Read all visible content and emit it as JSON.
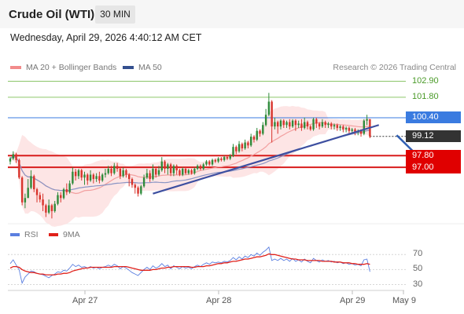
{
  "header": {
    "title": "Crude Oil (WTI)",
    "timeframe": "30 MIN"
  },
  "timestamp": "Wednesday, April 29, 2026 4:40:12 AM CET",
  "legend": {
    "main": [
      {
        "label": "MA 20 + Bollinger Bands",
        "color": "#f28b8b"
      },
      {
        "label": "MA 50",
        "color": "#34508f"
      }
    ],
    "rsi": [
      {
        "label": "RSI",
        "color": "#5b7fe0"
      },
      {
        "label": "9MA",
        "color": "#e0201a"
      }
    ]
  },
  "source": "Research © 2026 Trading Central",
  "chart_data": [
    {
      "type": "candlestick",
      "x_labels": [
        "Apr 27",
        "Apr 28",
        "Apr 29",
        "May 9"
      ],
      "ylim": [
        93.3,
        103.3
      ],
      "price_levels": [
        {
          "label": "102.90",
          "value": 102.9,
          "kind": "resistance"
        },
        {
          "label": "101.80",
          "value": 101.8,
          "kind": "resistance"
        },
        {
          "label": "100.40",
          "value": 100.4,
          "kind": "pivot"
        },
        {
          "label": "99.12",
          "value": 99.12,
          "kind": "last"
        },
        {
          "label": "97.80",
          "value": 97.8,
          "kind": "support"
        },
        {
          "label": "97.00",
          "value": 97.0,
          "kind": "support"
        }
      ],
      "colors": {
        "up": "#2f8a3a",
        "down": "#d8342c",
        "resistance": "#8cc66a",
        "pivot": "#3a7be0",
        "support": "#d81c1c",
        "last": "#333333",
        "trend": "#3d4fa0",
        "bands": "#fde0e0"
      },
      "trendline": [
        [
          48,
          95.2
        ],
        [
          124,
          99.9
        ]
      ],
      "forecast_arrow": [
        [
          130,
          99.2
        ],
        [
          139,
          97.4
        ]
      ],
      "candles": [
        [
          97.4,
          97.6,
          97.7,
          97.2
        ],
        [
          97.6,
          97.9,
          98.1,
          97.5
        ],
        [
          97.9,
          97.5,
          98.0,
          97.3
        ],
        [
          97.5,
          96.3,
          97.6,
          96.2
        ],
        [
          96.3,
          94.6,
          96.4,
          94.4
        ],
        [
          94.6,
          94.9,
          95.2,
          94.2
        ],
        [
          94.9,
          95.6,
          96.2,
          94.9
        ],
        [
          95.6,
          96.4,
          96.8,
          95.5
        ],
        [
          96.4,
          95.5,
          96.5,
          95.3
        ],
        [
          95.5,
          95.1,
          95.6,
          94.6
        ],
        [
          95.1,
          94.8,
          95.3,
          94.6
        ],
        [
          94.8,
          94.4,
          95.2,
          94.0
        ],
        [
          94.4,
          93.9,
          94.5,
          93.6
        ],
        [
          93.9,
          94.4,
          94.8,
          93.8
        ],
        [
          94.4,
          94.0,
          94.5,
          93.5
        ],
        [
          94.0,
          94.5,
          94.7,
          93.9
        ],
        [
          94.5,
          95.1,
          95.3,
          94.4
        ],
        [
          95.1,
          94.9,
          95.3,
          94.6
        ],
        [
          94.9,
          95.5,
          95.6,
          94.8
        ],
        [
          95.5,
          95.3,
          95.9,
          95.1
        ],
        [
          95.3,
          95.9,
          96.1,
          95.2
        ],
        [
          95.9,
          96.7,
          97.0,
          95.8
        ],
        [
          96.7,
          96.4,
          96.9,
          96.1
        ],
        [
          96.4,
          96.8,
          96.9,
          96.2
        ],
        [
          96.8,
          96.3,
          96.9,
          96.1
        ],
        [
          96.3,
          96.5,
          96.7,
          95.8
        ],
        [
          96.5,
          96.1,
          96.6,
          95.8
        ],
        [
          96.1,
          96.5,
          96.8,
          96.0
        ],
        [
          96.5,
          96.2,
          96.6,
          95.9
        ],
        [
          96.2,
          96.4,
          96.6,
          96.0
        ],
        [
          96.4,
          96.1,
          96.7,
          95.9
        ],
        [
          96.1,
          96.5,
          96.6,
          96.0
        ],
        [
          96.5,
          96.6,
          96.9,
          96.3
        ],
        [
          96.6,
          96.9,
          97.1,
          96.5
        ],
        [
          96.9,
          96.6,
          97.1,
          96.4
        ],
        [
          96.6,
          97.1,
          97.3,
          96.5
        ],
        [
          97.1,
          96.9,
          97.3,
          96.7
        ],
        [
          96.9,
          96.4,
          97.0,
          96.2
        ],
        [
          96.4,
          96.8,
          97.0,
          96.3
        ],
        [
          96.8,
          96.5,
          96.9,
          96.3
        ],
        [
          96.5,
          96.2,
          96.6,
          95.7
        ],
        [
          96.2,
          95.8,
          96.3,
          95.6
        ],
        [
          95.8,
          95.6,
          95.9,
          95.2
        ],
        [
          95.6,
          95.2,
          95.7,
          95.0
        ],
        [
          95.2,
          95.7,
          95.8,
          95.1
        ],
        [
          95.7,
          96.3,
          96.5,
          95.6
        ],
        [
          96.3,
          96.6,
          96.9,
          96.2
        ],
        [
          96.6,
          96.2,
          96.8,
          96.0
        ],
        [
          96.2,
          96.9,
          97.2,
          96.1
        ],
        [
          96.9,
          96.5,
          97.0,
          96.3
        ],
        [
          96.5,
          96.8,
          97.1,
          96.4
        ],
        [
          96.8,
          97.4,
          97.7,
          96.7
        ],
        [
          97.4,
          96.9,
          97.5,
          96.6
        ],
        [
          96.9,
          97.2,
          97.3,
          96.5
        ],
        [
          97.2,
          96.6,
          97.3,
          96.4
        ],
        [
          96.6,
          97.1,
          97.2,
          96.4
        ],
        [
          97.1,
          96.8,
          97.2,
          96.5
        ],
        [
          96.8,
          96.5,
          96.9,
          96.4
        ],
        [
          96.5,
          96.9,
          97.0,
          96.4
        ],
        [
          96.9,
          96.6,
          97.0,
          96.5
        ],
        [
          96.6,
          96.8,
          96.9,
          96.5
        ],
        [
          96.8,
          96.6,
          96.9,
          96.5
        ],
        [
          96.6,
          96.9,
          97.0,
          96.5
        ],
        [
          96.9,
          97.1,
          97.2,
          96.8
        ],
        [
          97.1,
          96.9,
          97.2,
          96.8
        ],
        [
          96.9,
          97.2,
          97.3,
          96.8
        ],
        [
          97.2,
          97.4,
          97.5,
          97.1
        ],
        [
          97.4,
          97.2,
          97.5,
          97.1
        ],
        [
          97.2,
          97.5,
          97.6,
          97.1
        ],
        [
          97.5,
          97.4,
          97.6,
          97.3
        ],
        [
          97.4,
          97.6,
          97.7,
          97.3
        ],
        [
          97.6,
          97.5,
          97.7,
          97.4
        ],
        [
          97.5,
          97.7,
          97.8,
          97.4
        ],
        [
          97.7,
          97.6,
          97.8,
          97.5
        ],
        [
          97.6,
          97.8,
          97.9,
          97.5
        ],
        [
          97.8,
          98.4,
          98.6,
          97.7
        ],
        [
          98.4,
          98.1,
          98.5,
          97.9
        ],
        [
          98.1,
          98.6,
          98.8,
          98.0
        ],
        [
          98.6,
          98.3,
          98.7,
          98.1
        ],
        [
          98.3,
          98.7,
          98.9,
          98.2
        ],
        [
          98.7,
          98.5,
          98.8,
          98.3
        ],
        [
          98.5,
          99.1,
          99.3,
          98.4
        ],
        [
          99.1,
          98.9,
          99.2,
          98.7
        ],
        [
          98.9,
          99.5,
          99.7,
          98.8
        ],
        [
          99.5,
          99.3,
          99.6,
          99.1
        ],
        [
          99.3,
          99.9,
          100.1,
          99.2
        ],
        [
          99.9,
          100.6,
          101.0,
          99.8
        ],
        [
          100.6,
          101.5,
          102.1,
          100.5
        ],
        [
          101.5,
          99.8,
          101.6,
          98.7
        ],
        [
          99.8,
          100.1,
          100.4,
          99.6
        ],
        [
          100.1,
          99.8,
          100.2,
          99.3
        ],
        [
          99.8,
          100.2,
          100.3,
          99.6
        ],
        [
          100.2,
          99.9,
          100.3,
          99.7
        ],
        [
          99.9,
          100.1,
          100.2,
          99.7
        ],
        [
          100.1,
          99.8,
          100.3,
          99.6
        ],
        [
          99.8,
          100.2,
          100.3,
          99.7
        ],
        [
          100.2,
          99.9,
          100.3,
          99.5
        ],
        [
          99.9,
          100.0,
          100.2,
          99.7
        ],
        [
          100.0,
          99.7,
          100.3,
          99.5
        ],
        [
          99.7,
          100.1,
          100.4,
          99.6
        ],
        [
          100.1,
          99.8,
          100.2,
          99.6
        ],
        [
          99.8,
          99.6,
          99.9,
          99.5
        ],
        [
          99.6,
          100.3,
          100.4,
          99.5
        ],
        [
          100.3,
          100.0,
          100.4,
          99.7
        ],
        [
          100.0,
          99.8,
          100.1,
          99.6
        ],
        [
          99.8,
          100.1,
          100.3,
          99.7
        ],
        [
          100.1,
          99.9,
          100.2,
          99.7
        ],
        [
          99.9,
          100.0,
          100.1,
          99.7
        ],
        [
          100.0,
          99.8,
          100.1,
          99.6
        ],
        [
          99.8,
          99.9,
          100.0,
          99.6
        ],
        [
          99.9,
          99.7,
          100.0,
          99.5
        ],
        [
          99.7,
          99.8,
          99.9,
          99.5
        ],
        [
          99.8,
          99.6,
          99.9,
          99.4
        ],
        [
          99.6,
          99.7,
          99.8,
          99.4
        ],
        [
          99.7,
          99.5,
          99.8,
          99.3
        ],
        [
          99.5,
          99.6,
          99.7,
          99.3
        ],
        [
          99.6,
          99.4,
          99.7,
          99.2
        ],
        [
          99.4,
          99.5,
          99.6,
          99.2
        ],
        [
          99.5,
          99.3,
          99.6,
          99.1
        ],
        [
          99.3,
          100.2,
          100.3,
          99.2
        ],
        [
          100.2,
          100.3,
          100.6,
          99.9
        ],
        [
          100.3,
          99.1,
          100.3,
          99.0
        ]
      ]
    },
    {
      "type": "line",
      "title": "RSI",
      "levels": [
        70,
        50,
        30
      ],
      "ylim": [
        20,
        85
      ],
      "series": [
        {
          "name": "RSI",
          "color": "#5b7fe0",
          "values": [
            58,
            63,
            56,
            50,
            32,
            40,
            44,
            48,
            47,
            45,
            44,
            43,
            41,
            39,
            42,
            44,
            47,
            46,
            49,
            48,
            52,
            57,
            54,
            56,
            53,
            54,
            52,
            54,
            52,
            53,
            51,
            53,
            54,
            56,
            54,
            57,
            55,
            51,
            54,
            52,
            49,
            46,
            44,
            42,
            46,
            50,
            53,
            50,
            55,
            52,
            54,
            58,
            54,
            56,
            51,
            55,
            53,
            51,
            54,
            52,
            53,
            51,
            54,
            56,
            54,
            57,
            59,
            57,
            60,
            59,
            60,
            59,
            61,
            60,
            62,
            66,
            63,
            67,
            64,
            68,
            66,
            70,
            68,
            72,
            69,
            73,
            76,
            80,
            62,
            64,
            62,
            65,
            62,
            64,
            61,
            65,
            61,
            63,
            60,
            64,
            61,
            59,
            65,
            62,
            60,
            63,
            61,
            62,
            60,
            61,
            59,
            60,
            58,
            59,
            57,
            58,
            56,
            57,
            55,
            63,
            64,
            47
          ]
        },
        {
          "name": "9MA",
          "color": "#e0201a",
          "values": [
            52,
            54,
            54,
            53,
            50,
            48,
            47,
            46,
            46,
            45,
            44,
            44,
            43,
            43,
            43,
            43,
            44,
            44,
            45,
            45,
            46,
            48,
            49,
            50,
            51,
            52,
            52,
            53,
            53,
            53,
            53,
            53,
            53,
            53,
            53,
            54,
            54,
            54,
            54,
            54,
            53,
            52,
            51,
            50,
            49,
            49,
            49,
            49,
            50,
            50,
            51,
            52,
            52,
            53,
            53,
            54,
            54,
            54,
            54,
            54,
            54,
            53,
            53,
            54,
            54,
            54,
            55,
            55,
            56,
            57,
            58,
            58,
            59,
            59,
            60,
            61,
            61,
            62,
            63,
            64,
            64,
            65,
            66,
            67,
            67,
            68,
            69,
            71,
            70,
            70,
            69,
            68,
            67,
            66,
            65,
            64,
            64,
            63,
            63,
            63,
            62,
            62,
            62,
            62,
            62,
            61,
            61,
            61,
            61,
            60,
            60,
            60,
            59,
            59,
            59,
            58,
            58,
            57,
            57,
            57,
            58,
            57
          ]
        }
      ]
    }
  ]
}
